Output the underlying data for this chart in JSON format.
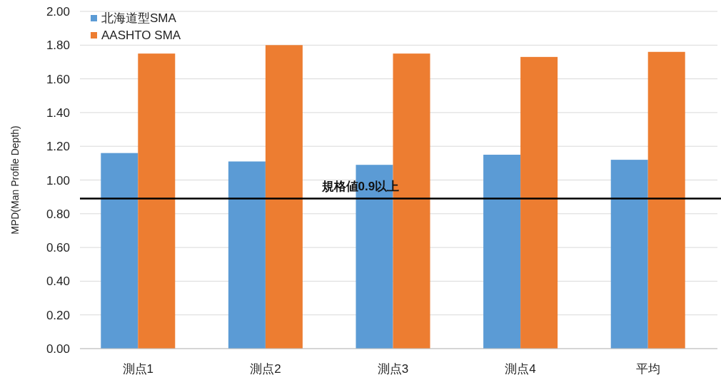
{
  "chart_data": {
    "type": "bar",
    "ylabel": "MPD(Man Profile Depth)",
    "categories": [
      "測点1",
      "測点2",
      "測点3",
      "測点4",
      "平均"
    ],
    "series": [
      {
        "name": "北海道型SMA",
        "color": "#5b9bd5",
        "values": [
          1.16,
          1.11,
          1.09,
          1.15,
          1.12
        ]
      },
      {
        "name": "AASHTO SMA",
        "color": "#ed7d31",
        "values": [
          1.75,
          1.8,
          1.75,
          1.73,
          1.76
        ]
      }
    ],
    "ylim": [
      0,
      2
    ],
    "yticks": [
      {
        "value": 0,
        "label": "0.00"
      },
      {
        "value": 0.2,
        "label": "0.20"
      },
      {
        "value": 0.4,
        "label": "0.40"
      },
      {
        "value": 0.6,
        "label": "0.60"
      },
      {
        "value": 0.8,
        "label": "0.80"
      },
      {
        "value": 1,
        "label": "1.00"
      },
      {
        "value": 1.2,
        "label": "1.20"
      },
      {
        "value": 1.4,
        "label": "1.40"
      },
      {
        "value": 1.6,
        "label": "1.60"
      },
      {
        "value": 1.8,
        "label": "1.80"
      },
      {
        "value": 2,
        "label": "2.00"
      }
    ],
    "ref_lines": [
      {
        "axis": "y",
        "value": 0.89,
        "label": "規格値0.9以上",
        "color": "#000000"
      }
    ],
    "grid": "y",
    "legend": "top left"
  }
}
